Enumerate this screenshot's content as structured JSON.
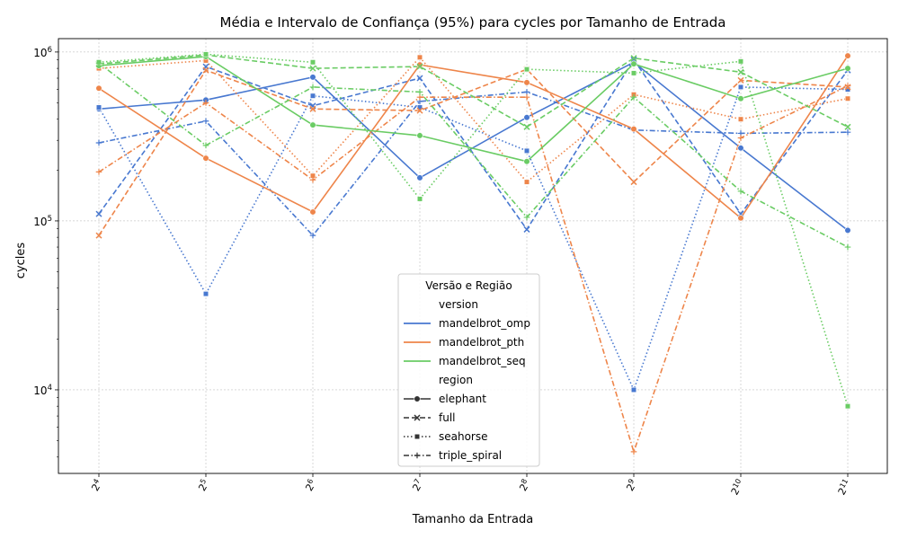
{
  "chart_data": {
    "type": "line",
    "title": "Média e Intervalo de Confiança (95%) para cycles por Tamanho de Entrada",
    "xlabel": "Tamanho da Entrada",
    "ylabel": "cycles",
    "y_scale": "log",
    "ylim": [
      3200,
      1200000
    ],
    "grid": true,
    "x": [
      16,
      32,
      64,
      128,
      256,
      512,
      1024,
      2048
    ],
    "x_ticks": [
      {
        "base": "2",
        "exp": "4"
      },
      {
        "base": "2",
        "exp": "5"
      },
      {
        "base": "2",
        "exp": "6"
      },
      {
        "base": "2",
        "exp": "7"
      },
      {
        "base": "2",
        "exp": "8"
      },
      {
        "base": "2",
        "exp": "9"
      },
      {
        "base": "2",
        "exp": "10"
      },
      {
        "base": "2",
        "exp": "11"
      }
    ],
    "y_ticks": [
      {
        "value": 10000,
        "base": "10",
        "exp": "4"
      },
      {
        "value": 100000,
        "base": "10",
        "exp": "5"
      },
      {
        "value": 1000000,
        "base": "10",
        "exp": "6"
      }
    ],
    "legend": {
      "title": "Versão e Região",
      "placement": "lower center",
      "version_header": "version",
      "region_header": "region"
    },
    "versions": [
      {
        "name": "mandelbrot_omp",
        "color": "#4878d0"
      },
      {
        "name": "mandelbrot_pth",
        "color": "#ee854a"
      },
      {
        "name": "mandelbrot_seq",
        "color": "#6acc64"
      }
    ],
    "regions": [
      {
        "name": "elephant",
        "dash": "solid",
        "marker": "circle"
      },
      {
        "name": "full",
        "dash": "dashed",
        "marker": "x"
      },
      {
        "name": "seahorse",
        "dash": "dotted",
        "marker": "square"
      },
      {
        "name": "triple_spiral",
        "dash": "dashdot",
        "marker": "plus"
      }
    ],
    "series": [
      {
        "version": "mandelbrot_omp",
        "region": "elephant",
        "values": [
          460000,
          520000,
          710000,
          180000,
          410000,
          870000,
          270000,
          88000
        ]
      },
      {
        "version": "mandelbrot_omp",
        "region": "full",
        "values": [
          110000,
          820000,
          480000,
          700000,
          89000,
          900000,
          110000,
          780000
        ]
      },
      {
        "version": "mandelbrot_omp",
        "region": "seahorse",
        "values": [
          470000,
          37000,
          550000,
          470000,
          260000,
          10000,
          620000,
          600000
        ]
      },
      {
        "version": "mandelbrot_omp",
        "region": "triple_spiral",
        "values": [
          290000,
          390000,
          82000,
          510000,
          580000,
          345000,
          330000,
          335000
        ]
      },
      {
        "version": "mandelbrot_pth",
        "region": "elephant",
        "values": [
          610000,
          235000,
          113000,
          840000,
          660000,
          350000,
          104000,
          950000
        ]
      },
      {
        "version": "mandelbrot_pth",
        "region": "full",
        "values": [
          82000,
          780000,
          460000,
          450000,
          790000,
          170000,
          680000,
          620000
        ]
      },
      {
        "version": "mandelbrot_pth",
        "region": "seahorse",
        "values": [
          800000,
          890000,
          185000,
          930000,
          170000,
          560000,
          400000,
          530000
        ]
      },
      {
        "version": "mandelbrot_pth",
        "region": "triple_spiral",
        "values": [
          195000,
          500000,
          175000,
          540000,
          540000,
          4300,
          310000,
          630000
        ]
      },
      {
        "version": "mandelbrot_seq",
        "region": "elephant",
        "values": [
          830000,
          940000,
          370000,
          320000,
          225000,
          850000,
          530000,
          800000
        ]
      },
      {
        "version": "mandelbrot_seq",
        "region": "full",
        "values": [
          850000,
          960000,
          800000,
          820000,
          360000,
          920000,
          760000,
          360000
        ]
      },
      {
        "version": "mandelbrot_seq",
        "region": "seahorse",
        "values": [
          870000,
          970000,
          870000,
          135000,
          790000,
          750000,
          880000,
          8000
        ]
      },
      {
        "version": "mandelbrot_seq",
        "region": "triple_spiral",
        "values": [
          860000,
          280000,
          620000,
          580000,
          105000,
          540000,
          150000,
          70000
        ]
      }
    ]
  }
}
